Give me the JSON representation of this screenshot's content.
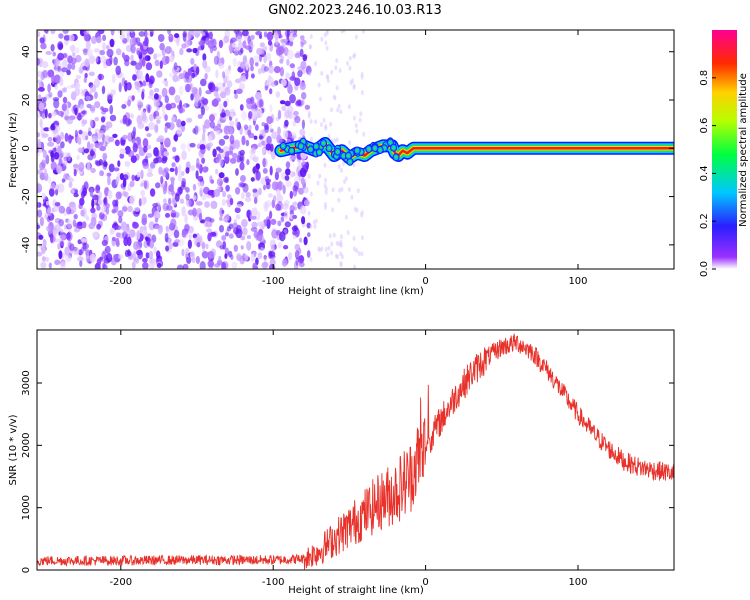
{
  "title": "GN02.2023.246.10.03.R13",
  "chart_data": [
    {
      "type": "heatmap",
      "xlabel": "Height of straight line (km)",
      "ylabel": "Frequency (Hz)",
      "xlim": [
        -255,
        163
      ],
      "ylim": [
        -50,
        49
      ],
      "x_ticks": [
        -200,
        -100,
        0,
        100
      ],
      "y_ticks": [
        -40,
        -20,
        0,
        20,
        40
      ],
      "noise_region_x": [
        -255,
        -70
      ],
      "signal_track": {
        "x": [
          -95,
          -88,
          -80,
          -72,
          -66,
          -60,
          -55,
          -50,
          -45,
          -40,
          -36,
          -32,
          -28,
          -25,
          -22,
          -20,
          -18,
          -15,
          -12,
          -8,
          -4,
          0,
          20,
          60,
          100,
          163
        ],
        "frequency": [
          -1,
          0,
          1,
          -1,
          2,
          -3,
          -1,
          -4,
          -2,
          -3,
          -1,
          0,
          1,
          1,
          1,
          -2,
          -3,
          -1,
          -2,
          0,
          0,
          0,
          0,
          0,
          0,
          0
        ]
      },
      "colorbar": {
        "label": "Normalized spectral amplitude",
        "range": [
          0.0,
          1.0
        ],
        "ticks": [
          "0.0",
          "0.2",
          "0.4",
          "0.6",
          "0.8"
        ],
        "colormap": "gist_rainbow reversed (white → violet → blue → cyan → green → yellow → red → magenta)"
      }
    },
    {
      "type": "line",
      "xlabel": "Height of straight line (km)",
      "ylabel": "SNR (10 * v/v)",
      "xlim": [
        -255,
        163
      ],
      "ylim": [
        0,
        3850
      ],
      "x_ticks": [
        -200,
        -100,
        0,
        100
      ],
      "y_ticks": [
        0,
        1000,
        2000,
        3000
      ],
      "series": [
        {
          "color": "#e8312a",
          "x": [
            -255,
            -200,
            -150,
            -100,
            -80,
            -70,
            -60,
            -50,
            -40,
            -30,
            -20,
            -10,
            -5,
            0,
            10,
            20,
            30,
            40,
            50,
            60,
            70,
            80,
            90,
            100,
            110,
            120,
            130,
            140,
            150,
            163
          ],
          "y": [
            150,
            150,
            160,
            160,
            180,
            300,
            500,
            700,
            900,
            1100,
            1250,
            1500,
            1800,
            2000,
            2400,
            2800,
            3150,
            3400,
            3580,
            3650,
            3500,
            3200,
            2850,
            2500,
            2200,
            1950,
            1750,
            1650,
            1600,
            1550
          ]
        }
      ]
    }
  ]
}
